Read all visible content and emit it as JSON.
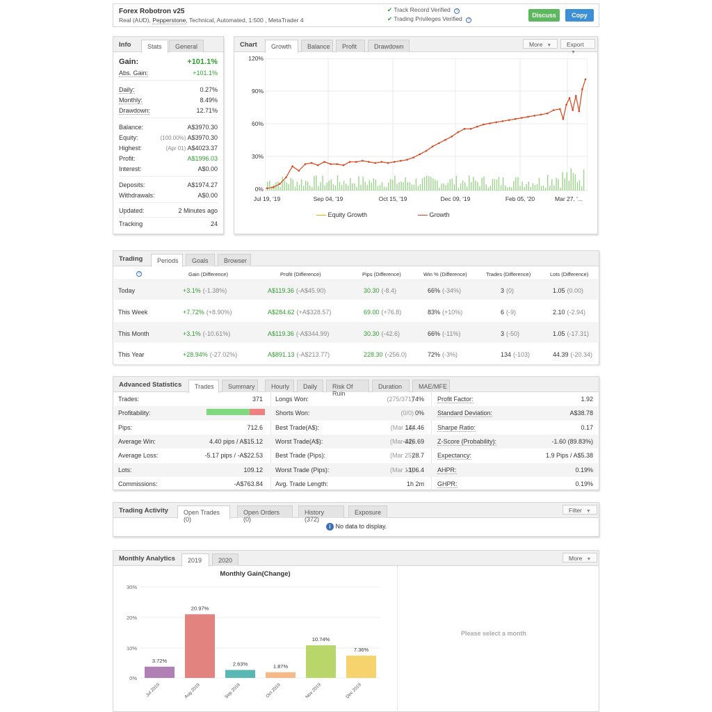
{
  "header": {
    "title": "Forex Robotron v25",
    "sub_prefix": "Real (AUD),",
    "broker": "Pepperstone",
    "sub_suffix": ", Technical, Automated, 1:500 , MetaTrader 4",
    "verified1": "Track Record Verified",
    "verified2": "Trading Privileges Verified",
    "discuss": "Discuss",
    "copy": "Copy"
  },
  "info": {
    "title": "Info",
    "tabs": [
      "Stats",
      "General"
    ],
    "gain_label": "Gain:",
    "gain_value": "+101.1%",
    "abs_gain_label": "Abs. Gain:",
    "abs_gain_value": "+101.1%",
    "daily_label": "Daily:",
    "daily_value": "0.27%",
    "monthly_label": "Monthly:",
    "monthly_value": "8.49%",
    "drawdown_label": "Drawdown:",
    "drawdown_value": "12.71%",
    "balance_label": "Balance:",
    "balance_value": "A$3970.30",
    "equity_label": "Equity:",
    "equity_note": "(100.00%)",
    "equity_value": "A$3970.30",
    "highest_label": "Highest:",
    "highest_note": "(Apr 01)",
    "highest_value": "A$4023.37",
    "profit_label": "Profit:",
    "profit_value": "A$1996.03",
    "interest_label": "Interest:",
    "interest_value": "A$0.00",
    "deposits_label": "Deposits:",
    "deposits_value": "A$1974.27",
    "withdrawals_label": "Withdrawals:",
    "withdrawals_value": "A$0.00",
    "updated_label": "Updated:",
    "updated_value": "2 Minutes ago",
    "tracking_label": "Tracking",
    "tracking_value": "24"
  },
  "chart": {
    "title": "Chart",
    "tabs": [
      "Growth",
      "Balance",
      "Profit",
      "Drawdown"
    ],
    "more": "More",
    "export": "Export",
    "y_ticks": [
      "120%",
      "90%",
      "60%",
      "30%",
      "0%"
    ],
    "x_ticks": [
      "Jul 19, '19",
      "Sep 04, '19",
      "Oct 15, '19",
      "Dec 09, '19",
      "Feb 05, '20",
      "Mar 27, '..."
    ],
    "legend_equity": "Equity Growth",
    "legend_growth": "Growth",
    "equity_color": "#f0b400",
    "growth_color": "#d9441c",
    "bar_color": "#9bd48a"
  },
  "trading": {
    "title": "Trading",
    "tabs": [
      "Periods",
      "Goals",
      "Browser"
    ],
    "columns": [
      "Gain (Difference)",
      "Profit (Difference)",
      "Pips (Difference)",
      "Win % (Difference)",
      "Trades (Difference)",
      "Lots (Difference)"
    ],
    "rows": [
      {
        "period": "Today",
        "gain": "+3.1%",
        "gain_diff": "(-1.38%)",
        "profit": "A$119.36",
        "profit_diff": "(-A$45.90)",
        "pips": "30.30",
        "pips_diff": "(-8.4)",
        "win": "66%",
        "win_diff": "(-34%)",
        "trades": "3",
        "trades_diff": "(0)",
        "lots": "1.05",
        "lots_diff": "(0.00)"
      },
      {
        "period": "This Week",
        "gain": "+7.72%",
        "gain_diff": "(+8.90%)",
        "profit": "A$284.62",
        "profit_diff": "(+A$328.57)",
        "pips": "69.00",
        "pips_diff": "(+76.8)",
        "win": "83%",
        "win_diff": "(+10%)",
        "trades": "6",
        "trades_diff": "(-9)",
        "lots": "2.10",
        "lots_diff": "(-2.94)"
      },
      {
        "period": "This Month",
        "gain": "+3.1%",
        "gain_diff": "(-10.61%)",
        "profit": "A$119.36",
        "profit_diff": "(-A$344.99)",
        "pips": "30.30",
        "pips_diff": "(-42.6)",
        "win": "66%",
        "win_diff": "(-11%)",
        "trades": "3",
        "trades_diff": "(-50)",
        "lots": "1.05",
        "lots_diff": "(-17.31)"
      },
      {
        "period": "This Year",
        "gain": "+28.94%",
        "gain_diff": "(-27.02%)",
        "profit": "A$891.13",
        "profit_diff": "(-A$213.77)",
        "pips": "228.30",
        "pips_diff": "(-256.0)",
        "win": "72%",
        "win_diff": "(-3%)",
        "trades": "134",
        "trades_diff": "(-103)",
        "lots": "44.39",
        "lots_diff": "(-20.34)"
      }
    ]
  },
  "advanced": {
    "title": "Advanced Statistics",
    "tabs": [
      "Trades",
      "Summary",
      "Hourly",
      "Daily",
      "Risk Of Ruin",
      "Duration",
      "MAE/MFE"
    ],
    "profitability_won": 0.74,
    "col1": [
      {
        "k": "Trades:",
        "v": "371"
      },
      {
        "k": "Profitability:",
        "v": ""
      },
      {
        "k": "Pips:",
        "v": "712.6"
      },
      {
        "k": "Average Win:",
        "v": "4.40 pips / A$15.12"
      },
      {
        "k": "Average Loss:",
        "v": "-5.17 pips / -A$22.53"
      },
      {
        "k": "Lots:",
        "v": "109.12"
      },
      {
        "k": "Commissions:",
        "v": "-A$763.84"
      }
    ],
    "col2": [
      {
        "k": "Longs Won:",
        "n": "(275/371)",
        "v": "74%"
      },
      {
        "k": "Shorts Won:",
        "n": "(0/0)",
        "v": "0%"
      },
      {
        "k": "Best Trade(A$):",
        "n": "(Mar 11)",
        "v": "144.46"
      },
      {
        "k": "Worst Trade(A$):",
        "n": "(Mar 24)",
        "v": "-426.69"
      },
      {
        "k": "Best Trade (Pips):",
        "n": "(Mar 25)",
        "v": "28.7"
      },
      {
        "k": "Worst Trade (Pips):",
        "n": "(Mar 13)",
        "v": "-106.4"
      },
      {
        "k": "Avg. Trade Length:",
        "n": "",
        "v": "1h 2m"
      }
    ],
    "col3": [
      {
        "k": "Profit Factor:",
        "v": "1.92"
      },
      {
        "k": "Standard Deviation:",
        "v": "A$38.78"
      },
      {
        "k": "Sharpe Ratio:",
        "v": "0.17"
      },
      {
        "k": "Z-Score (Probability):",
        "v": "-1.60 (89.83%)"
      },
      {
        "k": "Expectancy:",
        "v": "1.9 Pips / A$5.38"
      },
      {
        "k": "AHPR:",
        "v": "0.19%"
      },
      {
        "k": "GHPR:",
        "v": "0.19%"
      }
    ]
  },
  "activity": {
    "title": "Trading Activity",
    "tabs": [
      "Open Trades (0)",
      "Open Orders (0)",
      "History (372)",
      "Exposure"
    ],
    "filter": "Filter",
    "no_data": "No data to display."
  },
  "monthly": {
    "title": "Monthly Analytics",
    "tabs": [
      "2019",
      "2020"
    ],
    "more": "More",
    "hint": "Please select a month"
  },
  "chart_data": {
    "type": "bar",
    "title": "Monthly Gain(Change)",
    "categories": [
      "Jul 2019",
      "Aug 2019",
      "Sep 2019",
      "Oct 2019",
      "Nov 2019",
      "Dec 2019"
    ],
    "values": [
      3.72,
      20.97,
      2.63,
      1.87,
      10.74,
      7.36
    ],
    "labels": [
      "3.72%",
      "20.97%",
      "2.63%",
      "1.87%",
      "10.74%",
      "7.36%"
    ],
    "colors": [
      "#b07fb6",
      "#e2837f",
      "#5ab8b4",
      "#f7b988",
      "#b9d66b",
      "#f6d36c"
    ],
    "y_ticks": [
      "30%",
      "20%",
      "10%",
      "0%"
    ],
    "ylim": [
      0,
      30
    ]
  }
}
